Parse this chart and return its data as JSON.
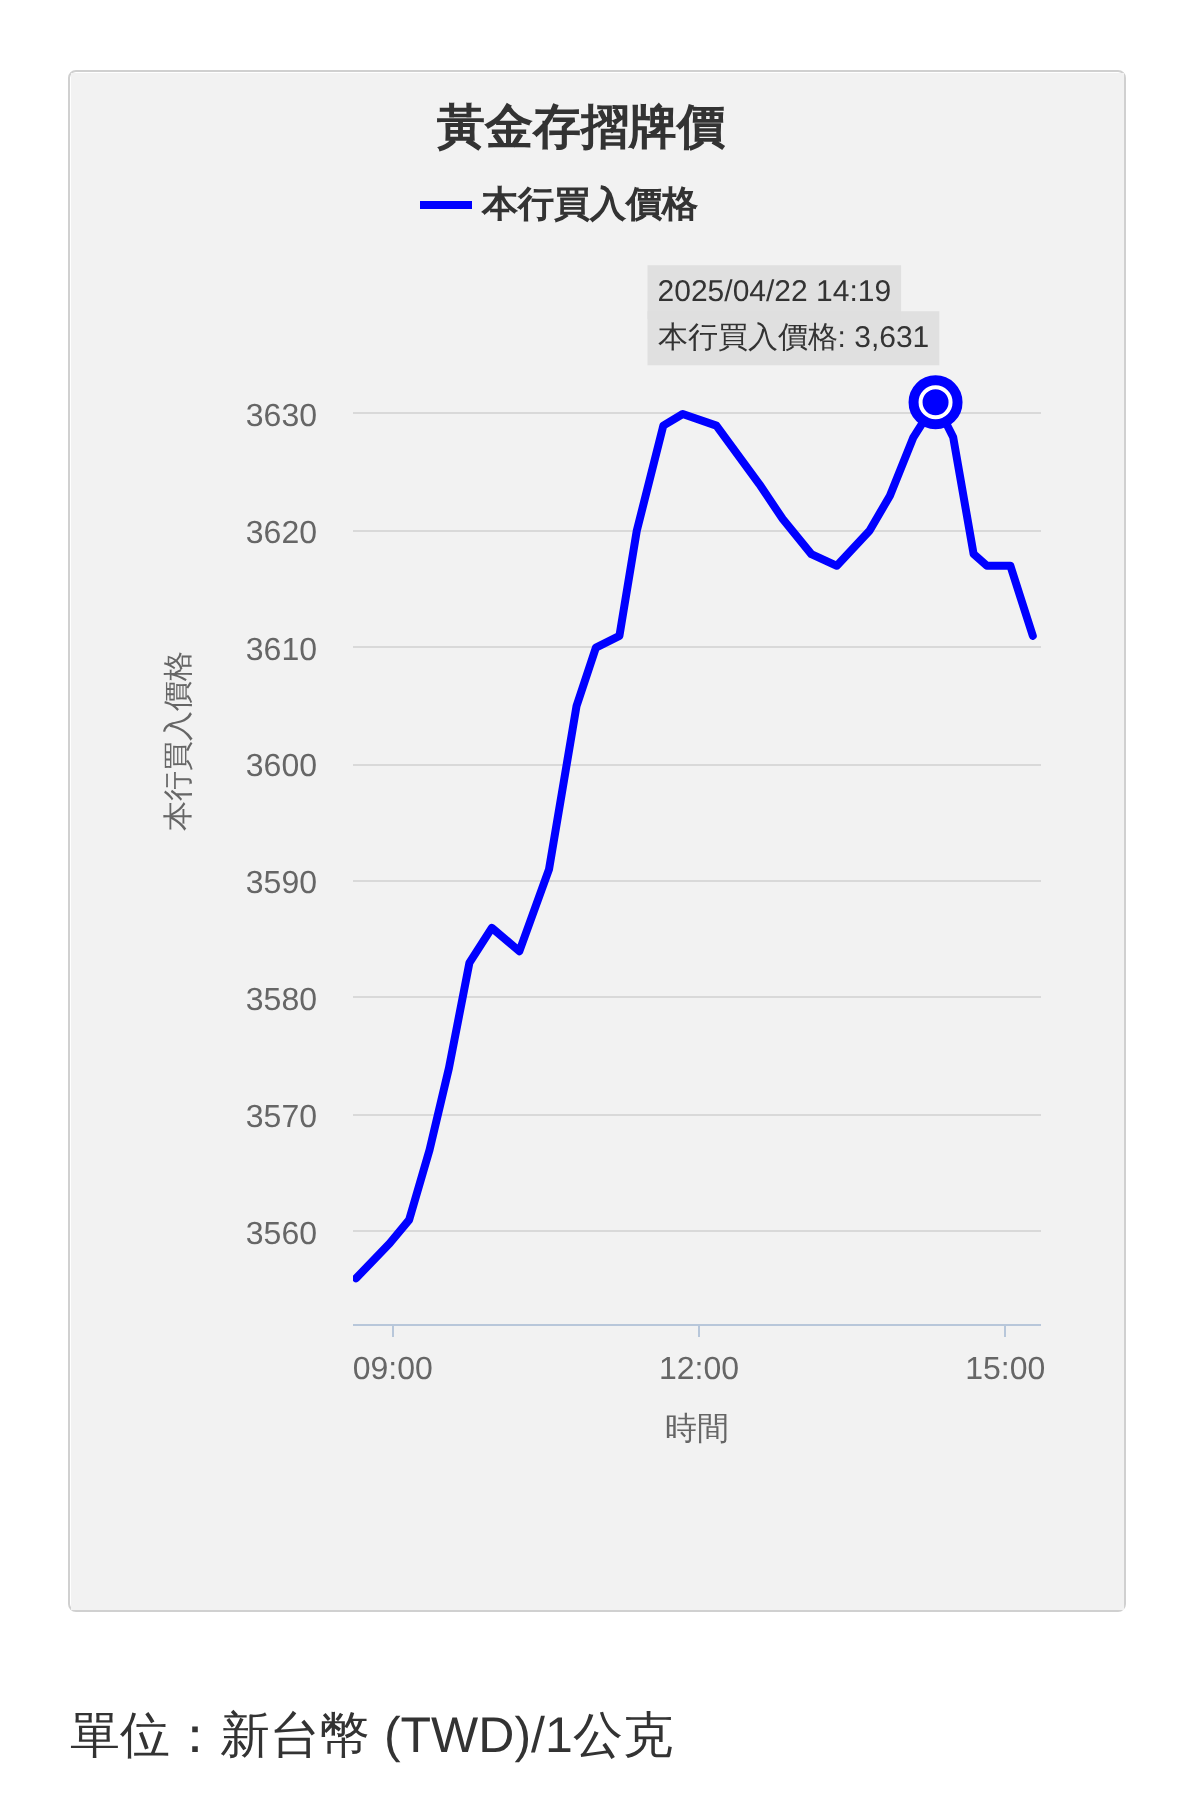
{
  "chart_data": {
    "type": "line",
    "title": "黃金存摺牌價",
    "xlabel": "時間",
    "ylabel": "本行買入價格",
    "x": [
      8.64,
      8.97,
      9.16,
      9.36,
      9.55,
      9.75,
      9.97,
      10.24,
      10.53,
      10.8,
      10.99,
      11.22,
      11.39,
      11.65,
      11.84,
      12.17,
      12.59,
      12.82,
      13.1,
      13.35,
      13.67,
      13.87,
      14.1,
      14.317,
      14.49,
      14.69,
      14.82,
      15.05,
      15.27
    ],
    "series": [
      {
        "name": "本行買入價格",
        "color": "#0000ff",
        "values": [
          3556,
          3559,
          3561,
          3567,
          3574,
          3583,
          3586,
          3584,
          3591,
          3605,
          3610,
          3611,
          3620,
          3629,
          3630,
          3629,
          3624,
          3621,
          3618,
          3617,
          3620,
          3623,
          3628,
          3631,
          3628,
          3618,
          3617,
          3617,
          3611
        ]
      }
    ],
    "xlim": [
      8.61,
      15.35
    ],
    "ylim": [
      3552,
      3652
    ],
    "xticks": [
      {
        "value": 9,
        "label": "09:00"
      },
      {
        "value": 12,
        "label": "12:00"
      },
      {
        "value": 15,
        "label": "15:00"
      }
    ],
    "yticks": [
      3560,
      3570,
      3580,
      3590,
      3600,
      3610,
      3620,
      3630
    ],
    "grid": "y",
    "legend": "top",
    "line_style": "solid",
    "annotations": [
      "2025/04/22 14:19",
      {
        "text": "本行買入價格: 3,631",
        "x": 14.317,
        "y": 3631
      },
      "單位：新台幣 (TWD)/1公克"
    ]
  }
}
